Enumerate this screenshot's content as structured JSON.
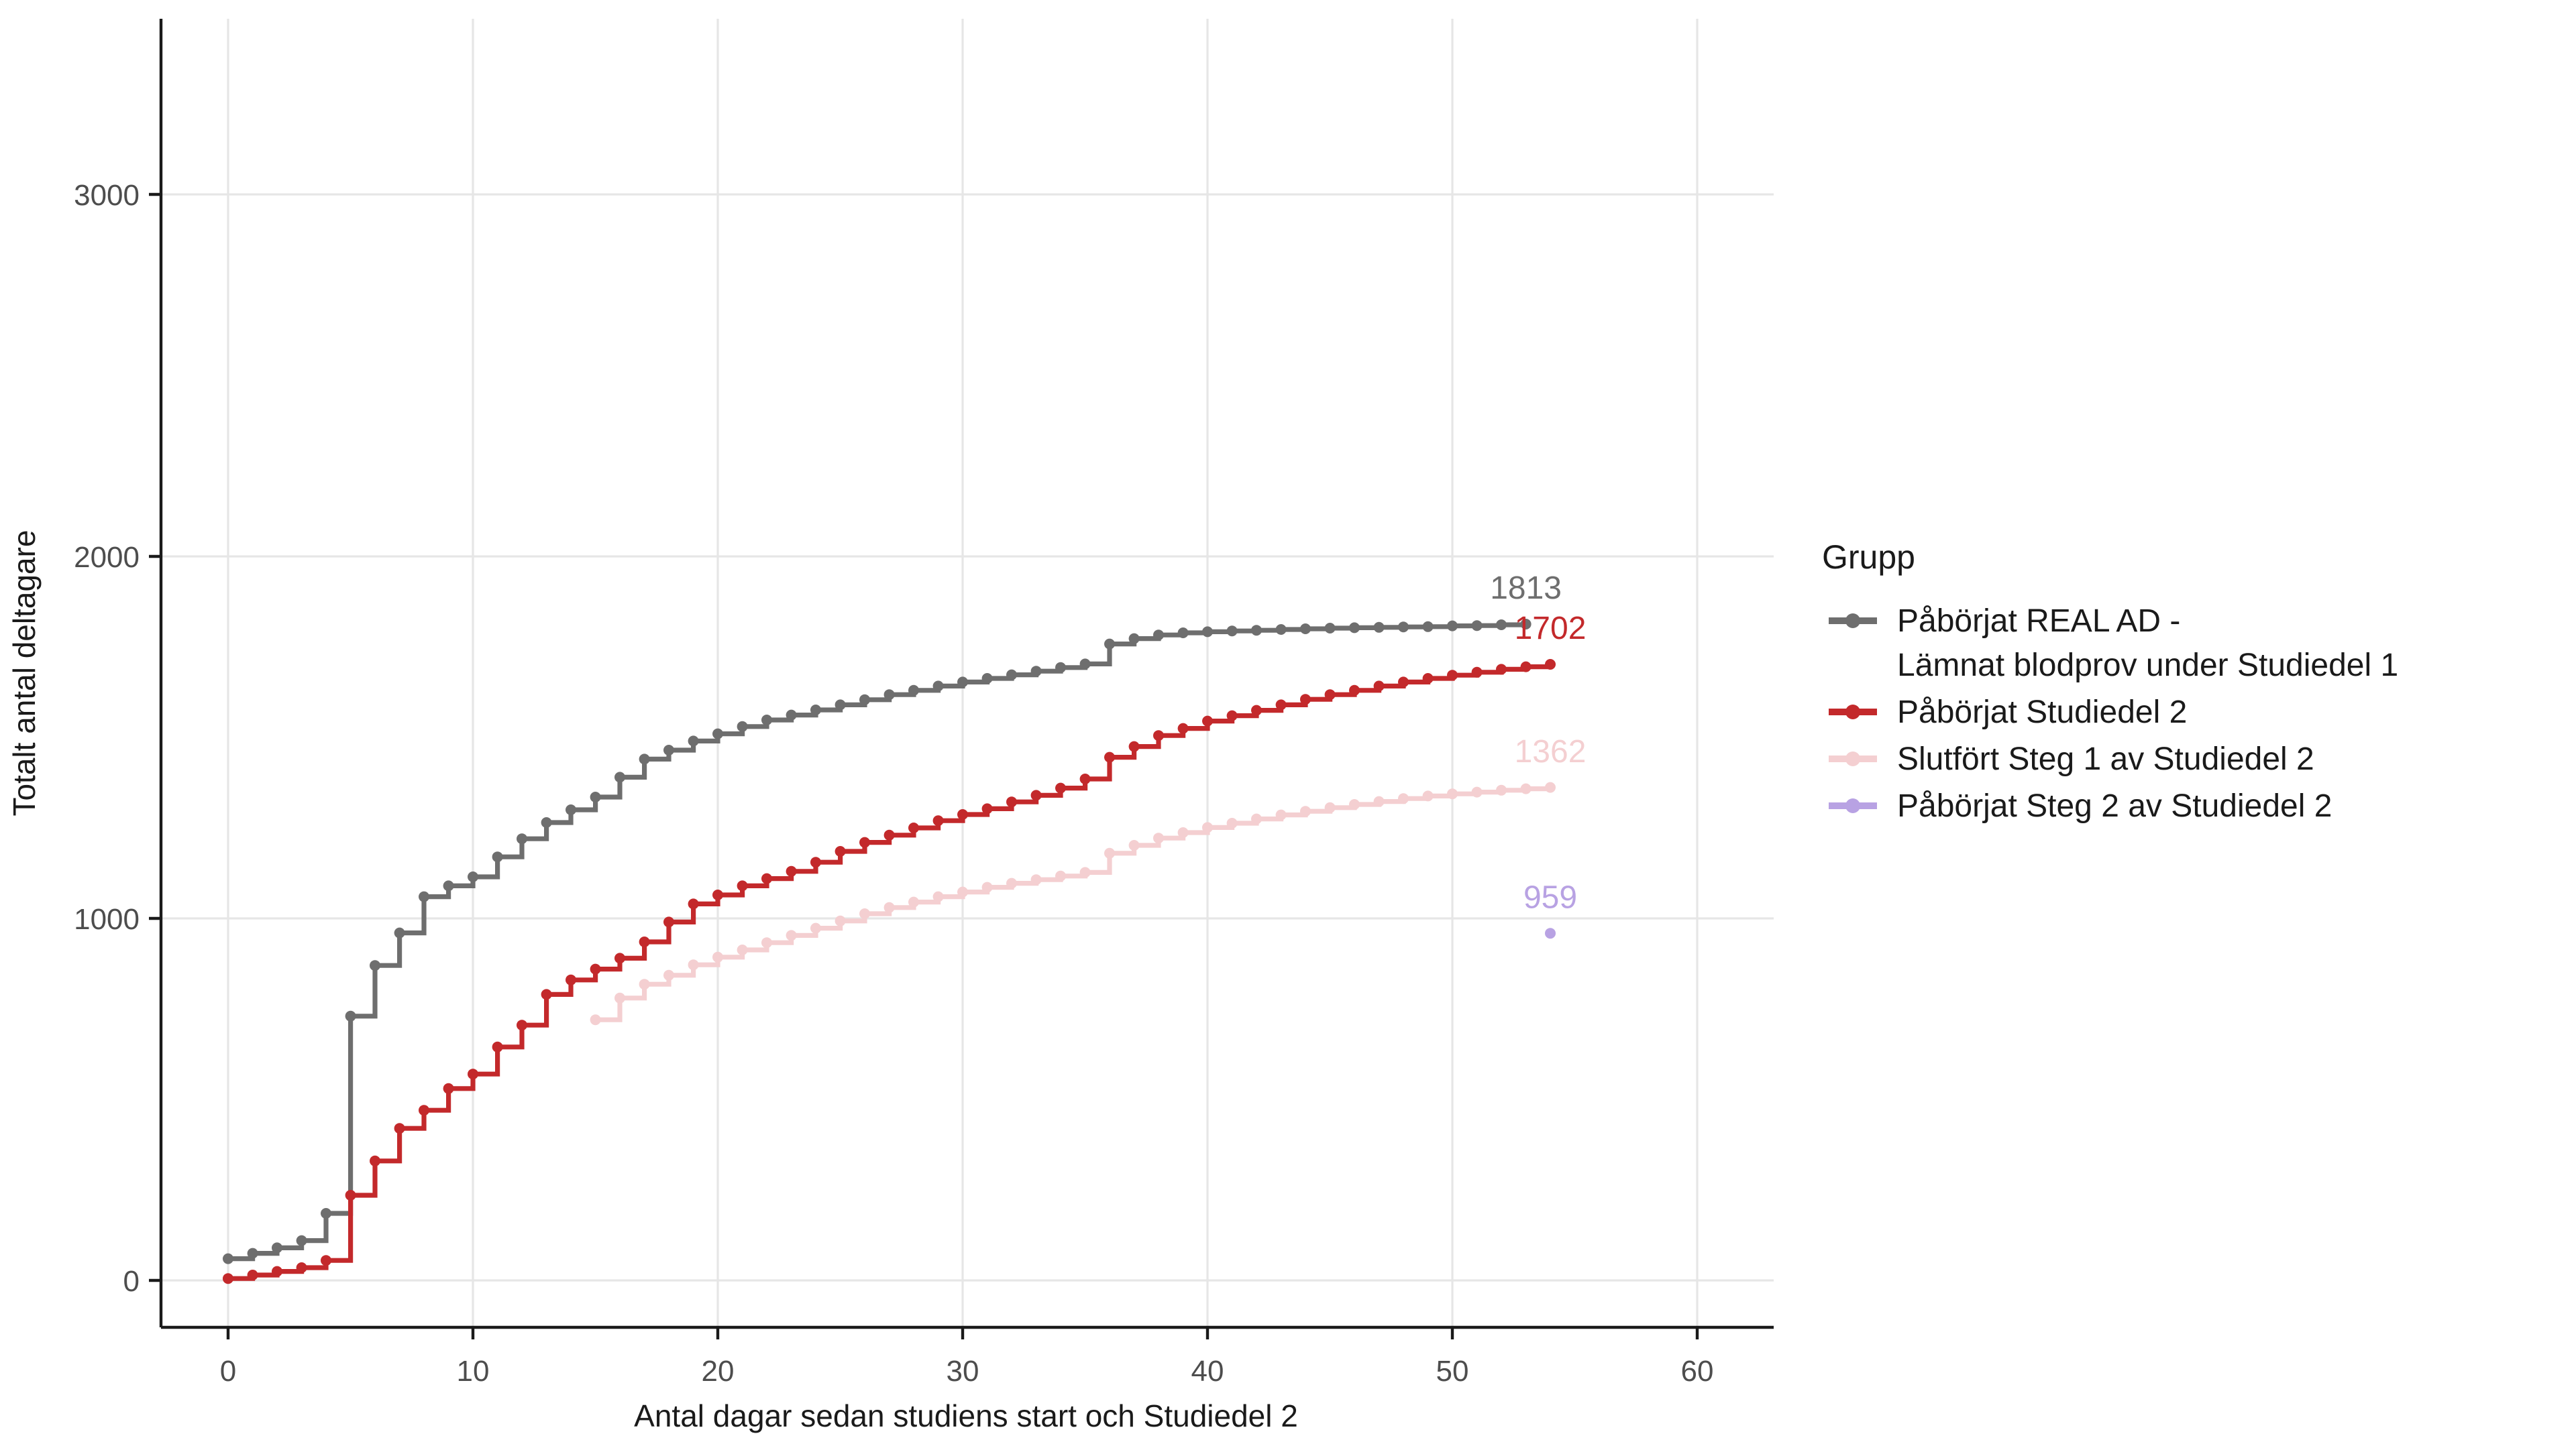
{
  "legend": {
    "title": "Grupp",
    "items": [
      {
        "label": "Påbörjat REAL AD -\nLämnat blodprov under Studiedel 1",
        "color": "#6e6e6e"
      },
      {
        "label": "Påbörjat Studiedel 2",
        "color": "#c3292b"
      },
      {
        "label": "Slutfört Steg 1 av Studiedel 2",
        "color": "#f4cfd1"
      },
      {
        "label": "Påbörjat Steg 2 av Studiedel 2",
        "color": "#b8a2e3"
      }
    ]
  },
  "chart_data": {
    "type": "line",
    "title": "",
    "xlabel": "Antal dagar sedan studiens start och Studiedel 2",
    "ylabel": "Totalt antal deltagare",
    "x_ticks": [
      0,
      10,
      20,
      30,
      40,
      50,
      60
    ],
    "y_ticks": [
      0,
      1000,
      2000,
      3000
    ],
    "xlim": [
      -3,
      63
    ],
    "ylim": [
      -130,
      3480
    ],
    "grid": true,
    "legend_position": "right",
    "series": [
      {
        "name": "Påbörjat REAL AD - Lämnat blodprov under Studiedel 1",
        "color": "#6e6e6e",
        "geom": "step",
        "end_label": "1813",
        "points": [
          [
            0,
            60
          ],
          [
            1,
            75
          ],
          [
            2,
            90
          ],
          [
            3,
            110
          ],
          [
            4,
            185
          ],
          [
            5,
            730
          ],
          [
            6,
            870
          ],
          [
            7,
            960
          ],
          [
            8,
            1060
          ],
          [
            9,
            1090
          ],
          [
            10,
            1115
          ],
          [
            11,
            1170
          ],
          [
            12,
            1220
          ],
          [
            13,
            1265
          ],
          [
            14,
            1300
          ],
          [
            15,
            1335
          ],
          [
            16,
            1390
          ],
          [
            17,
            1440
          ],
          [
            18,
            1465
          ],
          [
            19,
            1490
          ],
          [
            20,
            1510
          ],
          [
            21,
            1530
          ],
          [
            22,
            1548
          ],
          [
            23,
            1562
          ],
          [
            24,
            1576
          ],
          [
            25,
            1590
          ],
          [
            26,
            1604
          ],
          [
            27,
            1618
          ],
          [
            28,
            1630
          ],
          [
            29,
            1642
          ],
          [
            30,
            1653
          ],
          [
            31,
            1663
          ],
          [
            32,
            1673
          ],
          [
            33,
            1683
          ],
          [
            34,
            1693
          ],
          [
            35,
            1703
          ],
          [
            36,
            1758
          ],
          [
            37,
            1773
          ],
          [
            38,
            1783
          ],
          [
            39,
            1789
          ],
          [
            40,
            1792
          ],
          [
            41,
            1794
          ],
          [
            42,
            1796
          ],
          [
            43,
            1798
          ],
          [
            44,
            1800
          ],
          [
            45,
            1802
          ],
          [
            46,
            1803
          ],
          [
            47,
            1804
          ],
          [
            48,
            1805
          ],
          [
            49,
            1806
          ],
          [
            50,
            1808
          ],
          [
            51,
            1809
          ],
          [
            52,
            1811
          ],
          [
            53,
            1813
          ]
        ]
      },
      {
        "name": "Påbörjat Studiedel 2",
        "color": "#c3292b",
        "geom": "step",
        "end_label": "1702",
        "points": [
          [
            0,
            5
          ],
          [
            1,
            15
          ],
          [
            2,
            25
          ],
          [
            3,
            35
          ],
          [
            4,
            55
          ],
          [
            5,
            235
          ],
          [
            6,
            330
          ],
          [
            7,
            420
          ],
          [
            8,
            470
          ],
          [
            9,
            530
          ],
          [
            10,
            570
          ],
          [
            11,
            645
          ],
          [
            12,
            705
          ],
          [
            13,
            790
          ],
          [
            14,
            830
          ],
          [
            15,
            860
          ],
          [
            16,
            890
          ],
          [
            17,
            935
          ],
          [
            18,
            990
          ],
          [
            19,
            1040
          ],
          [
            20,
            1065
          ],
          [
            21,
            1090
          ],
          [
            22,
            1110
          ],
          [
            23,
            1130
          ],
          [
            24,
            1155
          ],
          [
            25,
            1185
          ],
          [
            26,
            1210
          ],
          [
            27,
            1230
          ],
          [
            28,
            1250
          ],
          [
            29,
            1270
          ],
          [
            30,
            1287
          ],
          [
            31,
            1303
          ],
          [
            32,
            1322
          ],
          [
            33,
            1340
          ],
          [
            34,
            1360
          ],
          [
            35,
            1385
          ],
          [
            36,
            1445
          ],
          [
            37,
            1475
          ],
          [
            38,
            1505
          ],
          [
            39,
            1525
          ],
          [
            40,
            1545
          ],
          [
            41,
            1560
          ],
          [
            42,
            1575
          ],
          [
            43,
            1590
          ],
          [
            44,
            1605
          ],
          [
            45,
            1618
          ],
          [
            46,
            1630
          ],
          [
            47,
            1642
          ],
          [
            48,
            1653
          ],
          [
            49,
            1663
          ],
          [
            50,
            1672
          ],
          [
            51,
            1680
          ],
          [
            52,
            1688
          ],
          [
            53,
            1695
          ],
          [
            54,
            1702
          ]
        ]
      },
      {
        "name": "Slutfört Steg 1 av Studiedel 2",
        "color": "#f4cfd1",
        "geom": "step",
        "end_label": "1362",
        "points": [
          [
            15,
            720
          ],
          [
            16,
            780
          ],
          [
            17,
            818
          ],
          [
            18,
            843
          ],
          [
            19,
            872
          ],
          [
            20,
            893
          ],
          [
            21,
            913
          ],
          [
            22,
            933
          ],
          [
            23,
            953
          ],
          [
            24,
            973
          ],
          [
            25,
            993
          ],
          [
            26,
            1013
          ],
          [
            27,
            1030
          ],
          [
            28,
            1045
          ],
          [
            29,
            1060
          ],
          [
            30,
            1073
          ],
          [
            31,
            1086
          ],
          [
            32,
            1097
          ],
          [
            33,
            1107
          ],
          [
            34,
            1117
          ],
          [
            35,
            1127
          ],
          [
            36,
            1180
          ],
          [
            37,
            1202
          ],
          [
            38,
            1222
          ],
          [
            39,
            1237
          ],
          [
            40,
            1251
          ],
          [
            41,
            1263
          ],
          [
            42,
            1275
          ],
          [
            43,
            1286
          ],
          [
            44,
            1296
          ],
          [
            45,
            1306
          ],
          [
            46,
            1315
          ],
          [
            47,
            1323
          ],
          [
            48,
            1331
          ],
          [
            49,
            1338
          ],
          [
            50,
            1344
          ],
          [
            51,
            1349
          ],
          [
            52,
            1354
          ],
          [
            53,
            1358
          ],
          [
            54,
            1362
          ]
        ]
      },
      {
        "name": "Påbörjat Steg 2 av Studiedel 2",
        "color": "#b8a2e3",
        "geom": "point",
        "end_label": "959",
        "points": [
          [
            54,
            959
          ]
        ]
      }
    ]
  }
}
